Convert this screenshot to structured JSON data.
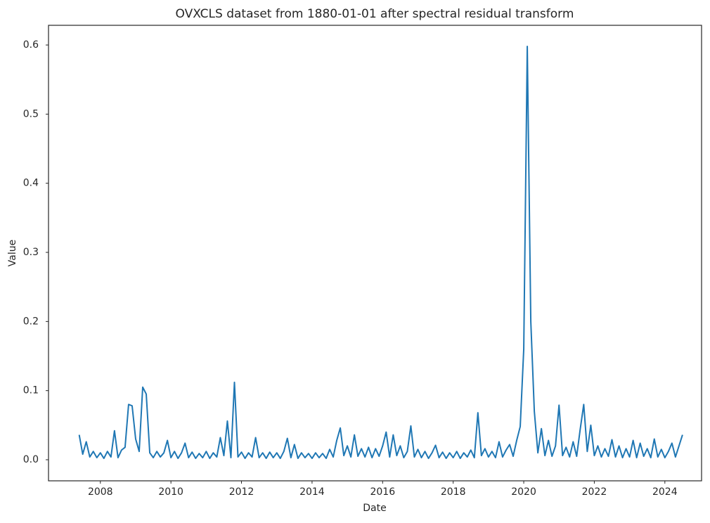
{
  "chart_data": {
    "type": "line",
    "title": "OVXCLS dataset from 1880-01-01 after spectral residual transform",
    "x_label": "Date",
    "y_label": "Value",
    "x": [
      2007.4,
      2007.5,
      2007.6,
      2007.7,
      2007.8,
      2007.9,
      2008.0,
      2008.1,
      2008.2,
      2008.3,
      2008.4,
      2008.5,
      2008.6,
      2008.7,
      2008.8,
      2008.9,
      2009.0,
      2009.1,
      2009.2,
      2009.3,
      2009.4,
      2009.5,
      2009.6,
      2009.7,
      2009.8,
      2009.9,
      2010.0,
      2010.1,
      2010.2,
      2010.3,
      2010.4,
      2010.5,
      2010.6,
      2010.7,
      2010.8,
      2010.9,
      2011.0,
      2011.1,
      2011.2,
      2011.3,
      2011.4,
      2011.5,
      2011.6,
      2011.7,
      2011.8,
      2011.9,
      2012.0,
      2012.1,
      2012.2,
      2012.3,
      2012.4,
      2012.5,
      2012.6,
      2012.7,
      2012.8,
      2012.9,
      2013.0,
      2013.1,
      2013.2,
      2013.3,
      2013.4,
      2013.5,
      2013.6,
      2013.7,
      2013.8,
      2013.9,
      2014.0,
      2014.1,
      2014.2,
      2014.3,
      2014.4,
      2014.5,
      2014.6,
      2014.7,
      2014.8,
      2014.9,
      2015.0,
      2015.1,
      2015.2,
      2015.3,
      2015.4,
      2015.5,
      2015.6,
      2015.7,
      2015.8,
      2015.9,
      2016.0,
      2016.1,
      2016.2,
      2016.3,
      2016.4,
      2016.5,
      2016.6,
      2016.7,
      2016.8,
      2016.9,
      2017.0,
      2017.1,
      2017.2,
      2017.3,
      2017.4,
      2017.5,
      2017.6,
      2017.7,
      2017.8,
      2017.9,
      2018.0,
      2018.1,
      2018.2,
      2018.3,
      2018.4,
      2018.5,
      2018.6,
      2018.7,
      2018.8,
      2018.9,
      2019.0,
      2019.1,
      2019.2,
      2019.3,
      2019.4,
      2019.5,
      2019.6,
      2019.7,
      2019.8,
      2019.9,
      2020.0,
      2020.1,
      2020.2,
      2020.3,
      2020.4,
      2020.5,
      2020.6,
      2020.7,
      2020.8,
      2020.9,
      2021.0,
      2021.1,
      2021.2,
      2021.3,
      2021.4,
      2021.5,
      2021.6,
      2021.7,
      2021.8,
      2021.9,
      2022.0,
      2022.1,
      2022.2,
      2022.3,
      2022.4,
      2022.5,
      2022.6,
      2022.7,
      2022.8,
      2022.9,
      2023.0,
      2023.1,
      2023.2,
      2023.3,
      2023.4,
      2023.5,
      2023.6,
      2023.7,
      2023.8,
      2023.9,
      2024.0,
      2024.1,
      2024.2,
      2024.3,
      2024.4,
      2024.5
    ],
    "series": [
      {
        "color": "#1f77b4",
        "values": [
          0.036,
          0.008,
          0.026,
          0.004,
          0.012,
          0.003,
          0.01,
          0.002,
          0.012,
          0.004,
          0.042,
          0.003,
          0.014,
          0.018,
          0.08,
          0.078,
          0.03,
          0.012,
          0.105,
          0.095,
          0.01,
          0.003,
          0.012,
          0.004,
          0.01,
          0.028,
          0.003,
          0.012,
          0.002,
          0.01,
          0.024,
          0.003,
          0.011,
          0.002,
          0.009,
          0.003,
          0.012,
          0.002,
          0.01,
          0.004,
          0.032,
          0.006,
          0.056,
          0.003,
          0.112,
          0.004,
          0.011,
          0.002,
          0.01,
          0.004,
          0.032,
          0.003,
          0.01,
          0.002,
          0.011,
          0.003,
          0.01,
          0.002,
          0.012,
          0.031,
          0.003,
          0.022,
          0.002,
          0.01,
          0.003,
          0.009,
          0.002,
          0.01,
          0.003,
          0.009,
          0.002,
          0.015,
          0.004,
          0.028,
          0.046,
          0.006,
          0.02,
          0.004,
          0.036,
          0.005,
          0.016,
          0.004,
          0.018,
          0.003,
          0.016,
          0.005,
          0.02,
          0.04,
          0.004,
          0.036,
          0.006,
          0.02,
          0.003,
          0.012,
          0.049,
          0.004,
          0.015,
          0.003,
          0.012,
          0.002,
          0.01,
          0.021,
          0.003,
          0.011,
          0.002,
          0.01,
          0.003,
          0.012,
          0.002,
          0.01,
          0.004,
          0.014,
          0.003,
          0.068,
          0.006,
          0.016,
          0.004,
          0.012,
          0.003,
          0.026,
          0.004,
          0.014,
          0.022,
          0.005,
          0.028,
          0.048,
          0.16,
          0.598,
          0.2,
          0.07,
          0.01,
          0.045,
          0.006,
          0.028,
          0.005,
          0.02,
          0.079,
          0.006,
          0.018,
          0.004,
          0.026,
          0.005,
          0.044,
          0.08,
          0.012,
          0.05,
          0.006,
          0.02,
          0.004,
          0.016,
          0.005,
          0.029,
          0.004,
          0.02,
          0.003,
          0.016,
          0.004,
          0.028,
          0.003,
          0.024,
          0.005,
          0.016,
          0.003,
          0.03,
          0.004,
          0.015,
          0.003,
          0.012,
          0.024,
          0.004,
          0.02,
          0.036
        ]
      }
    ],
    "xlim": [
      2006.53,
      2025.04
    ],
    "xticks": [
      2008,
      2010,
      2012,
      2014,
      2016,
      2018,
      2020,
      2022,
      2024
    ],
    "ylim": [
      -0.0305,
      0.6285
    ],
    "yticks": [
      {
        "value": 0,
        "label": "0.0"
      },
      0.1,
      0.2,
      0.3,
      0.4,
      0.5,
      0.6
    ],
    "grid": false
  }
}
